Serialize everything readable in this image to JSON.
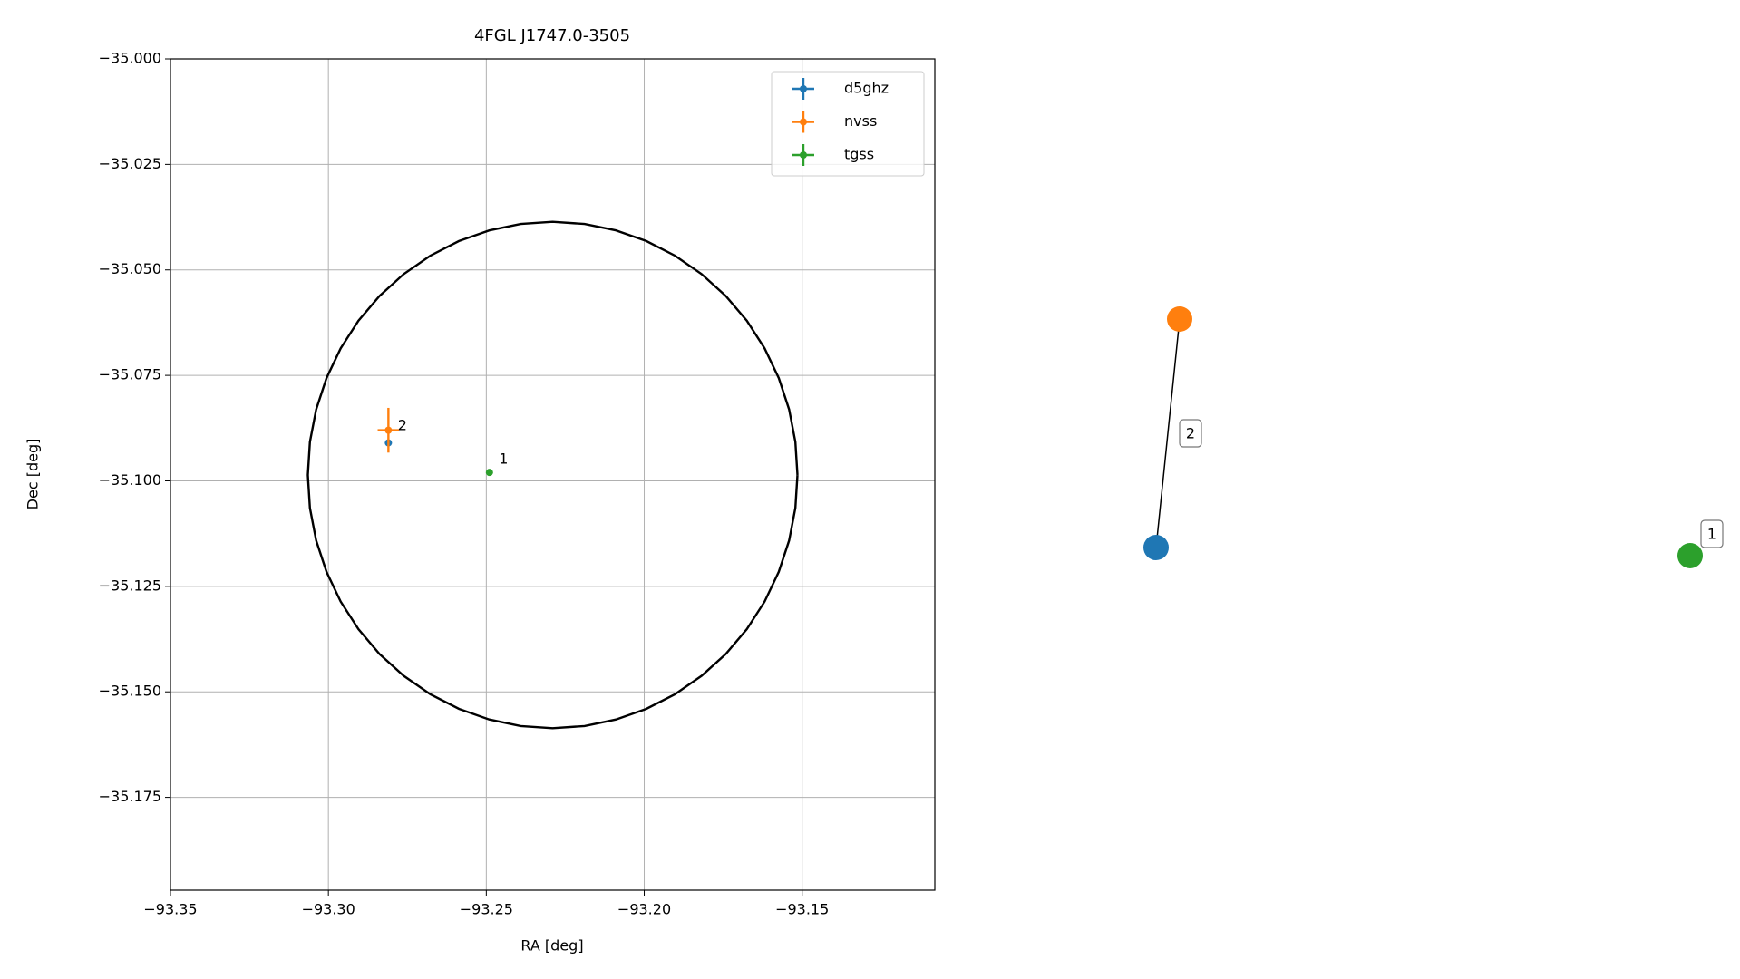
{
  "chart_data": [
    {
      "type": "scatter",
      "title": "4FGL J1747.0-3505",
      "xlabel": "RA [deg]",
      "ylabel": "Dec [deg]",
      "xlim": [
        -93.35,
        -93.108
      ],
      "ylim": [
        -35.197,
        -35.0
      ],
      "xticks": [
        {
          "value": -93.35,
          "label": "−93.35"
        },
        {
          "value": -93.3,
          "label": "−93.30"
        },
        {
          "value": -93.25,
          "label": "−93.25"
        },
        {
          "value": -93.2,
          "label": "−93.20"
        },
        {
          "value": -93.15,
          "label": "−93.15"
        }
      ],
      "yticks": [
        {
          "value": -35.0,
          "label": "−35.000"
        },
        {
          "value": -35.025,
          "label": "−35.025"
        },
        {
          "value": -35.05,
          "label": "−35.050"
        },
        {
          "value": -35.075,
          "label": "−35.075"
        },
        {
          "value": -35.1,
          "label": "−35.100"
        },
        {
          "value": -35.125,
          "label": "−35.125"
        },
        {
          "value": -35.15,
          "label": "−35.150"
        },
        {
          "value": -35.175,
          "label": "−35.175"
        }
      ],
      "grid": true,
      "legend": "upper right",
      "series": [
        {
          "name": "d5ghz",
          "color": "#1f77b4",
          "x": [
            -93.281
          ],
          "values": [
            -35.091
          ],
          "xerr": [
            0
          ],
          "yerr": [
            0
          ]
        },
        {
          "name": "nvss",
          "color": "#ff7f0e",
          "x": [
            -93.281
          ],
          "values": [
            -35.088
          ],
          "xerr": [
            0.0034
          ],
          "yerr": [
            0.0053
          ]
        },
        {
          "name": "tgss",
          "color": "#2ca02c",
          "x": [
            -93.249
          ],
          "values": [
            -35.098
          ],
          "xerr": [
            0
          ],
          "yerr": [
            0
          ]
        }
      ],
      "annotations": [
        {
          "text": "2",
          "x": -93.278,
          "y": -35.087
        },
        {
          "text": "1",
          "x": -93.246,
          "y": -35.095
        }
      ],
      "ellipse": {
        "x": -93.229,
        "y": -35.0986,
        "width": 0.155,
        "height": 0.12,
        "color": "#000000"
      }
    },
    {
      "type": "network",
      "nodes": [
        {
          "color": "#ff7f0e"
        },
        {
          "color": "#1f77b4"
        },
        {
          "color": "#2ca02c"
        }
      ],
      "groups": [
        {
          "label": "2",
          "nodes": [
            0,
            1
          ]
        },
        {
          "label": "1",
          "nodes": [
            2
          ]
        }
      ]
    }
  ]
}
